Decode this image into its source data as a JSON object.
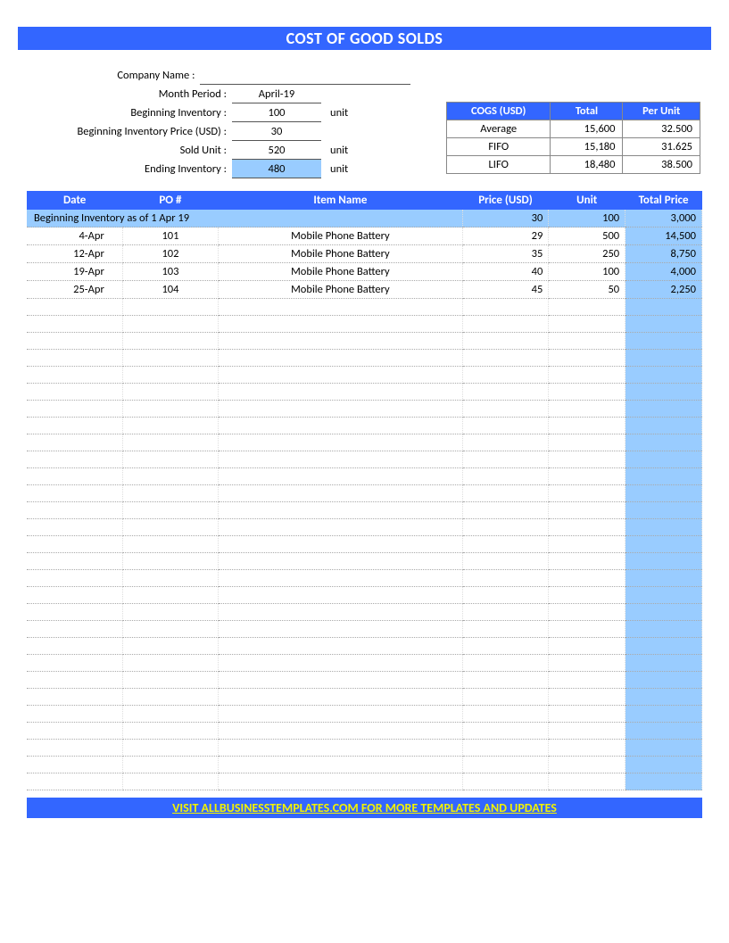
{
  "colors": {
    "primary": "#3366ff",
    "highlight": "#99ccff",
    "footer_text": "#f2f200",
    "white": "#ffffff"
  },
  "title": "COST OF GOOD SOLDS",
  "form": {
    "company_label": "Company Name :",
    "company_value": "",
    "month_label": "Month Period :",
    "month_value": "April-19",
    "beg_inv_label": "Beginning Inventory :",
    "beg_inv_value": "100",
    "beg_inv_unit": "unit",
    "beg_price_label": "Beginning Inventory Price (USD) :",
    "beg_price_value": "30",
    "sold_label": "Sold Unit :",
    "sold_value": "520",
    "sold_unit": "unit",
    "end_label": "Ending Inventory :",
    "end_value": "480",
    "end_unit": "unit"
  },
  "cogs": {
    "h1": "COGS (USD)",
    "h2": "Total",
    "h3": "Per Unit",
    "rows": [
      {
        "method": "Average",
        "total": "15,600",
        "perunit": "32.500"
      },
      {
        "method": "FIFO",
        "total": "15,180",
        "perunit": "31.625"
      },
      {
        "method": "LIFO",
        "total": "18,480",
        "perunit": "38.500"
      }
    ]
  },
  "table": {
    "headers": {
      "date": "Date",
      "po": "PO #",
      "item": "Item Name",
      "price": "Price (USD)",
      "unit": "Unit",
      "total": "Total Price"
    },
    "beginning": {
      "label": "Beginning Inventory as of  1 Apr 19",
      "price": "30",
      "unit": "100",
      "total": "3,000"
    },
    "rows": [
      {
        "date": "4-Apr",
        "po": "101",
        "item": "Mobile Phone Battery",
        "price": "29",
        "unit": "500",
        "total": "14,500"
      },
      {
        "date": "12-Apr",
        "po": "102",
        "item": "Mobile Phone Battery",
        "price": "35",
        "unit": "250",
        "total": "8,750"
      },
      {
        "date": "19-Apr",
        "po": "103",
        "item": "Mobile Phone Battery",
        "price": "40",
        "unit": "100",
        "total": "4,000"
      },
      {
        "date": "25-Apr",
        "po": "104",
        "item": "Mobile Phone Battery",
        "price": "45",
        "unit": "50",
        "total": "2,250"
      }
    ],
    "empty_rows": 29
  },
  "footer": "VISIT ALLBUSINESSTEMPLATES.COM FOR MORE TEMPLATES AND UPDATES"
}
